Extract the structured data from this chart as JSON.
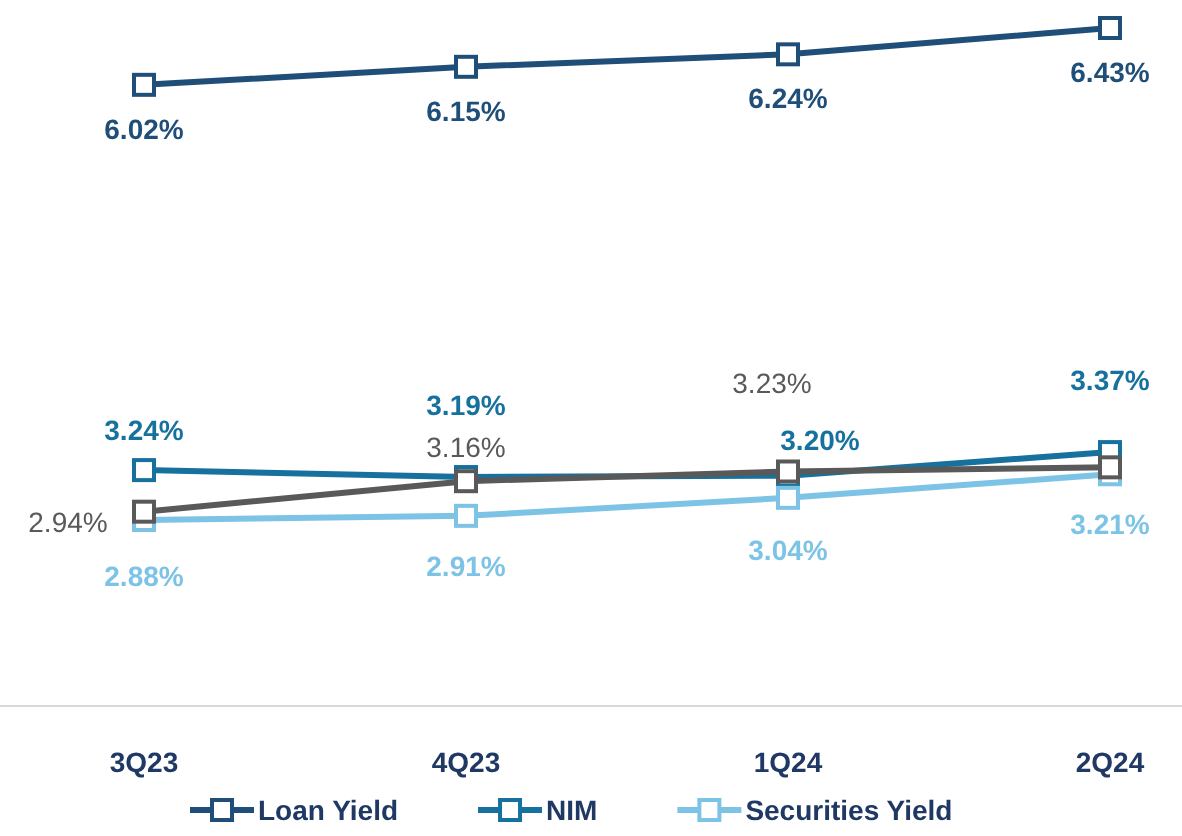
{
  "chart_data": {
    "type": "line",
    "categories": [
      "3Q23",
      "4Q23",
      "1Q24",
      "2Q24"
    ],
    "tick_labels": "x",
    "grid": false,
    "marker": "square",
    "line_style": "solid",
    "legend": "bottom",
    "series": [
      {
        "name": "Loan Yield",
        "color": "#1f4e79",
        "values": [
          6.02,
          6.15,
          6.24,
          6.43
        ],
        "value_labels": [
          "6.02%",
          "6.15%",
          "6.24%",
          "6.43%"
        ]
      },
      {
        "name": "NIM",
        "color": "#16719e",
        "values": [
          3.24,
          3.19,
          3.2,
          3.37
        ],
        "value_labels": [
          "3.24%",
          "3.19%",
          "3.20%",
          "3.37%"
        ]
      },
      {
        "name": "Securities Yield",
        "color": "#7cc3e6",
        "values": [
          2.88,
          2.91,
          3.04,
          3.21
        ],
        "value_labels": [
          "2.88%",
          "2.91%",
          "3.04%",
          "3.21%"
        ]
      },
      {
        "color": "#595959",
        "values": [
          2.94,
          3.16,
          3.23,
          3.26
        ],
        "value_labels": [
          "2.94%",
          "3.16%",
          "3.23%",
          null
        ]
      }
    ]
  }
}
